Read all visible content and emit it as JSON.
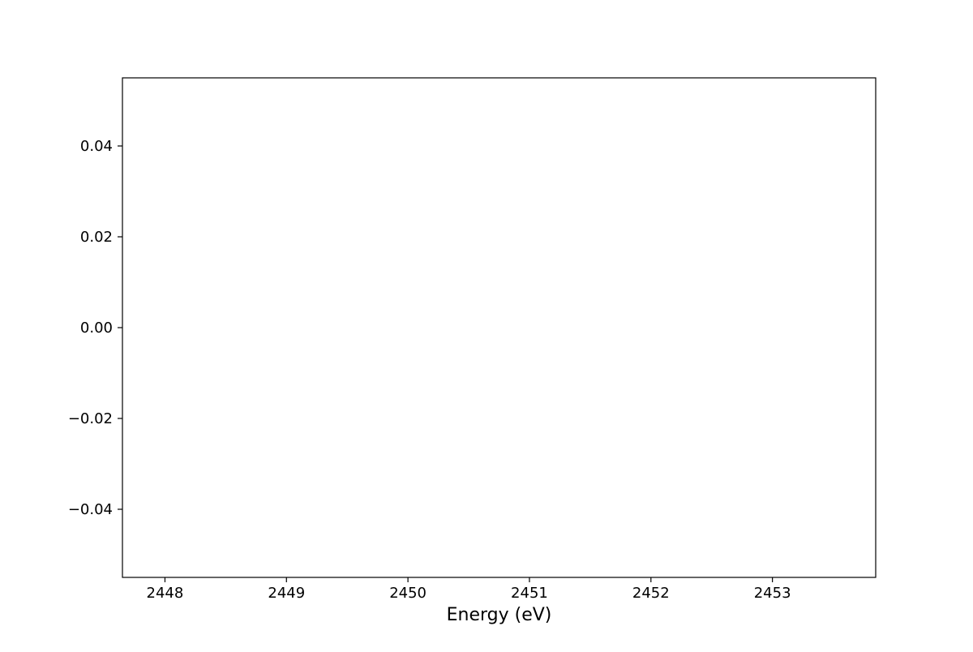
{
  "chart_data": {
    "type": "line",
    "title": "",
    "xlabel": "Energy (eV)",
    "ylabel": "",
    "xlim": [
      2447.65,
      2453.85
    ],
    "ylim": [
      -0.055,
      0.055
    ],
    "x_ticks": [
      2448,
      2449,
      2450,
      2451,
      2452,
      2453
    ],
    "x_tick_labels": [
      "2448",
      "2449",
      "2450",
      "2451",
      "2452",
      "2453"
    ],
    "y_ticks": [
      0.04,
      0.02,
      0.0,
      -0.02,
      -0.04
    ],
    "y_tick_labels": [
      "0.04",
      "0.02",
      "0.00",
      "−0.02",
      "−0.04"
    ],
    "series": [],
    "grid": false,
    "legend": "none"
  }
}
